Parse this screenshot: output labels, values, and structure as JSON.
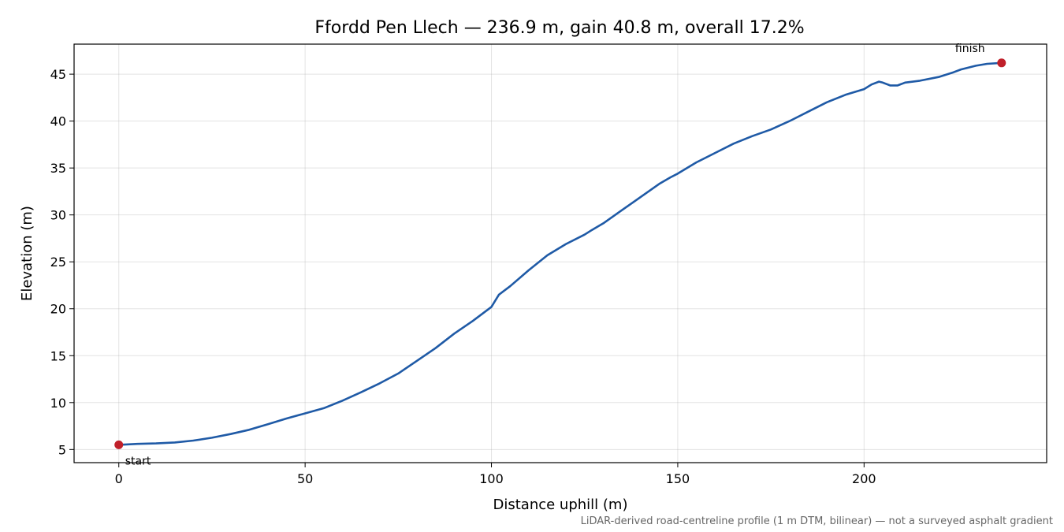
{
  "chart_data": {
    "type": "line",
    "title": "Ffordd Pen Llech — 236.9 m, gain 40.8 m, overall 17.2%",
    "xlabel": "Distance uphill (m)",
    "ylabel": "Elevation (m)",
    "footnote": "LiDAR-derived road-centreline profile (1 m DTM, bilinear) — not a surveyed asphalt gradient",
    "xlim": [
      -12,
      249
    ],
    "ylim": [
      3.6,
      48.2
    ],
    "x_ticks": [
      0,
      50,
      100,
      150,
      200
    ],
    "y_ticks": [
      5,
      10,
      15,
      20,
      25,
      30,
      35,
      40,
      45
    ],
    "grid": true,
    "line_color": "#1f5aa6",
    "marker_color": "#c0202a",
    "series": [
      {
        "x": [
          0,
          5,
          10,
          15,
          20,
          25,
          30,
          35,
          40,
          45,
          50,
          55,
          60,
          65,
          70,
          75,
          80,
          85,
          90,
          95,
          100,
          102,
          105,
          110,
          115,
          120,
          125,
          127,
          130,
          135,
          140,
          145,
          148,
          150,
          155,
          160,
          165,
          170,
          175,
          180,
          185,
          190,
          195,
          200,
          202,
          204,
          205,
          207,
          209,
          211,
          215,
          220,
          224,
          226,
          230,
          233,
          236.9
        ],
        "y": [
          5.5,
          5.6,
          5.65,
          5.75,
          5.95,
          6.25,
          6.65,
          7.1,
          7.7,
          8.3,
          8.85,
          9.4,
          10.2,
          11.1,
          12.05,
          13.1,
          14.45,
          15.8,
          17.35,
          18.7,
          20.2,
          21.5,
          22.4,
          24.1,
          25.7,
          26.9,
          27.9,
          28.4,
          29.1,
          30.5,
          31.9,
          33.3,
          34.0,
          34.4,
          35.6,
          36.6,
          37.6,
          38.4,
          39.1,
          40.0,
          41.0,
          42.0,
          42.8,
          43.4,
          43.9,
          44.2,
          44.1,
          43.8,
          43.8,
          44.1,
          44.3,
          44.7,
          45.2,
          45.5,
          45.9,
          46.1,
          46.2
        ]
      }
    ],
    "annotations": [
      {
        "label": "start",
        "x": 0,
        "y": 5.5
      },
      {
        "label": "finish",
        "x": 236.9,
        "y": 46.2
      }
    ]
  }
}
